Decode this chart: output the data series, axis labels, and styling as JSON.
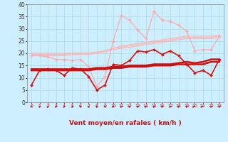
{
  "title": "",
  "xlabel": "Vent moyen/en rafales ( km/h )",
  "bg_color": "#cceeff",
  "grid_color": "#aadddd",
  "xlim": [
    -0.5,
    23.5
  ],
  "ylim": [
    0,
    40
  ],
  "yticks": [
    0,
    5,
    10,
    15,
    20,
    25,
    30,
    35,
    40
  ],
  "xticks": [
    0,
    1,
    2,
    3,
    4,
    5,
    6,
    7,
    8,
    9,
    10,
    11,
    12,
    13,
    14,
    15,
    16,
    17,
    18,
    19,
    20,
    21,
    22,
    23
  ],
  "series": [
    {
      "color": "#ffb3b3",
      "linewidth": 0.8,
      "marker": null,
      "markersize": 0,
      "y": [
        20.0,
        20.0,
        20.0,
        20.0,
        20.0,
        20.0,
        20.0,
        20.0,
        20.5,
        21.0,
        22.0,
        23.0,
        23.5,
        24.0,
        24.5,
        25.0,
        25.5,
        26.0,
        26.5,
        27.0,
        27.0,
        27.0,
        27.0,
        27.5
      ]
    },
    {
      "color": "#ffb3b3",
      "linewidth": 0.8,
      "marker": null,
      "markersize": 0,
      "y": [
        19.5,
        19.5,
        19.5,
        19.5,
        19.5,
        20.0,
        20.0,
        20.0,
        20.5,
        21.0,
        22.0,
        22.5,
        23.0,
        23.5,
        24.0,
        24.5,
        25.0,
        25.5,
        26.0,
        26.5,
        26.5,
        26.5,
        26.5,
        27.0
      ]
    },
    {
      "color": "#ffb3b3",
      "linewidth": 0.8,
      "marker": null,
      "markersize": 0,
      "y": [
        19.0,
        19.0,
        19.0,
        19.0,
        19.0,
        19.5,
        19.5,
        19.5,
        20.0,
        20.5,
        21.5,
        22.0,
        22.5,
        23.0,
        23.5,
        24.0,
        24.5,
        25.0,
        25.5,
        26.0,
        26.0,
        26.0,
        26.0,
        26.5
      ]
    },
    {
      "color": "#ffaaaa",
      "linewidth": 0.9,
      "marker": "D",
      "markersize": 2.0,
      "y": [
        19.0,
        19.0,
        18.5,
        17.5,
        17.5,
        17.0,
        17.5,
        14.5,
        6.5,
        10.5,
        25.0,
        35.5,
        33.5,
        29.5,
        26.0,
        37.0,
        33.5,
        33.0,
        31.5,
        29.0,
        21.0,
        21.5,
        21.5,
        27.0
      ]
    },
    {
      "color": "#dd1111",
      "linewidth": 1.2,
      "marker": "D",
      "markersize": 2.0,
      "y": [
        7.0,
        13.0,
        13.5,
        13.0,
        11.0,
        14.0,
        13.5,
        10.5,
        5.0,
        7.0,
        15.5,
        15.0,
        17.0,
        21.0,
        20.5,
        21.5,
        19.5,
        21.0,
        19.0,
        15.5,
        12.0,
        13.0,
        11.0,
        17.5
      ]
    },
    {
      "color": "#cc1111",
      "linewidth": 1.8,
      "marker": null,
      "markersize": 0,
      "y": [
        13.5,
        13.5,
        13.5,
        13.5,
        13.5,
        13.5,
        13.5,
        13.5,
        14.0,
        14.0,
        14.5,
        14.5,
        15.0,
        15.0,
        15.0,
        15.5,
        15.5,
        15.5,
        16.0,
        16.5,
        16.0,
        16.5,
        17.5,
        17.5
      ]
    },
    {
      "color": "#cc1111",
      "linewidth": 1.8,
      "marker": null,
      "markersize": 0,
      "y": [
        13.0,
        13.0,
        13.0,
        13.0,
        13.0,
        13.0,
        13.0,
        13.0,
        13.5,
        13.5,
        14.0,
        14.0,
        14.5,
        14.5,
        14.5,
        15.0,
        15.0,
        15.0,
        15.5,
        15.5,
        15.5,
        15.5,
        16.5,
        16.5
      ]
    }
  ],
  "wind_arrows_angles": [
    225,
    45,
    45,
    45,
    45,
    45,
    45,
    315,
    45,
    315,
    45,
    45,
    45,
    45,
    45,
    45,
    45,
    45,
    45,
    45,
    90,
    90,
    45,
    45
  ]
}
